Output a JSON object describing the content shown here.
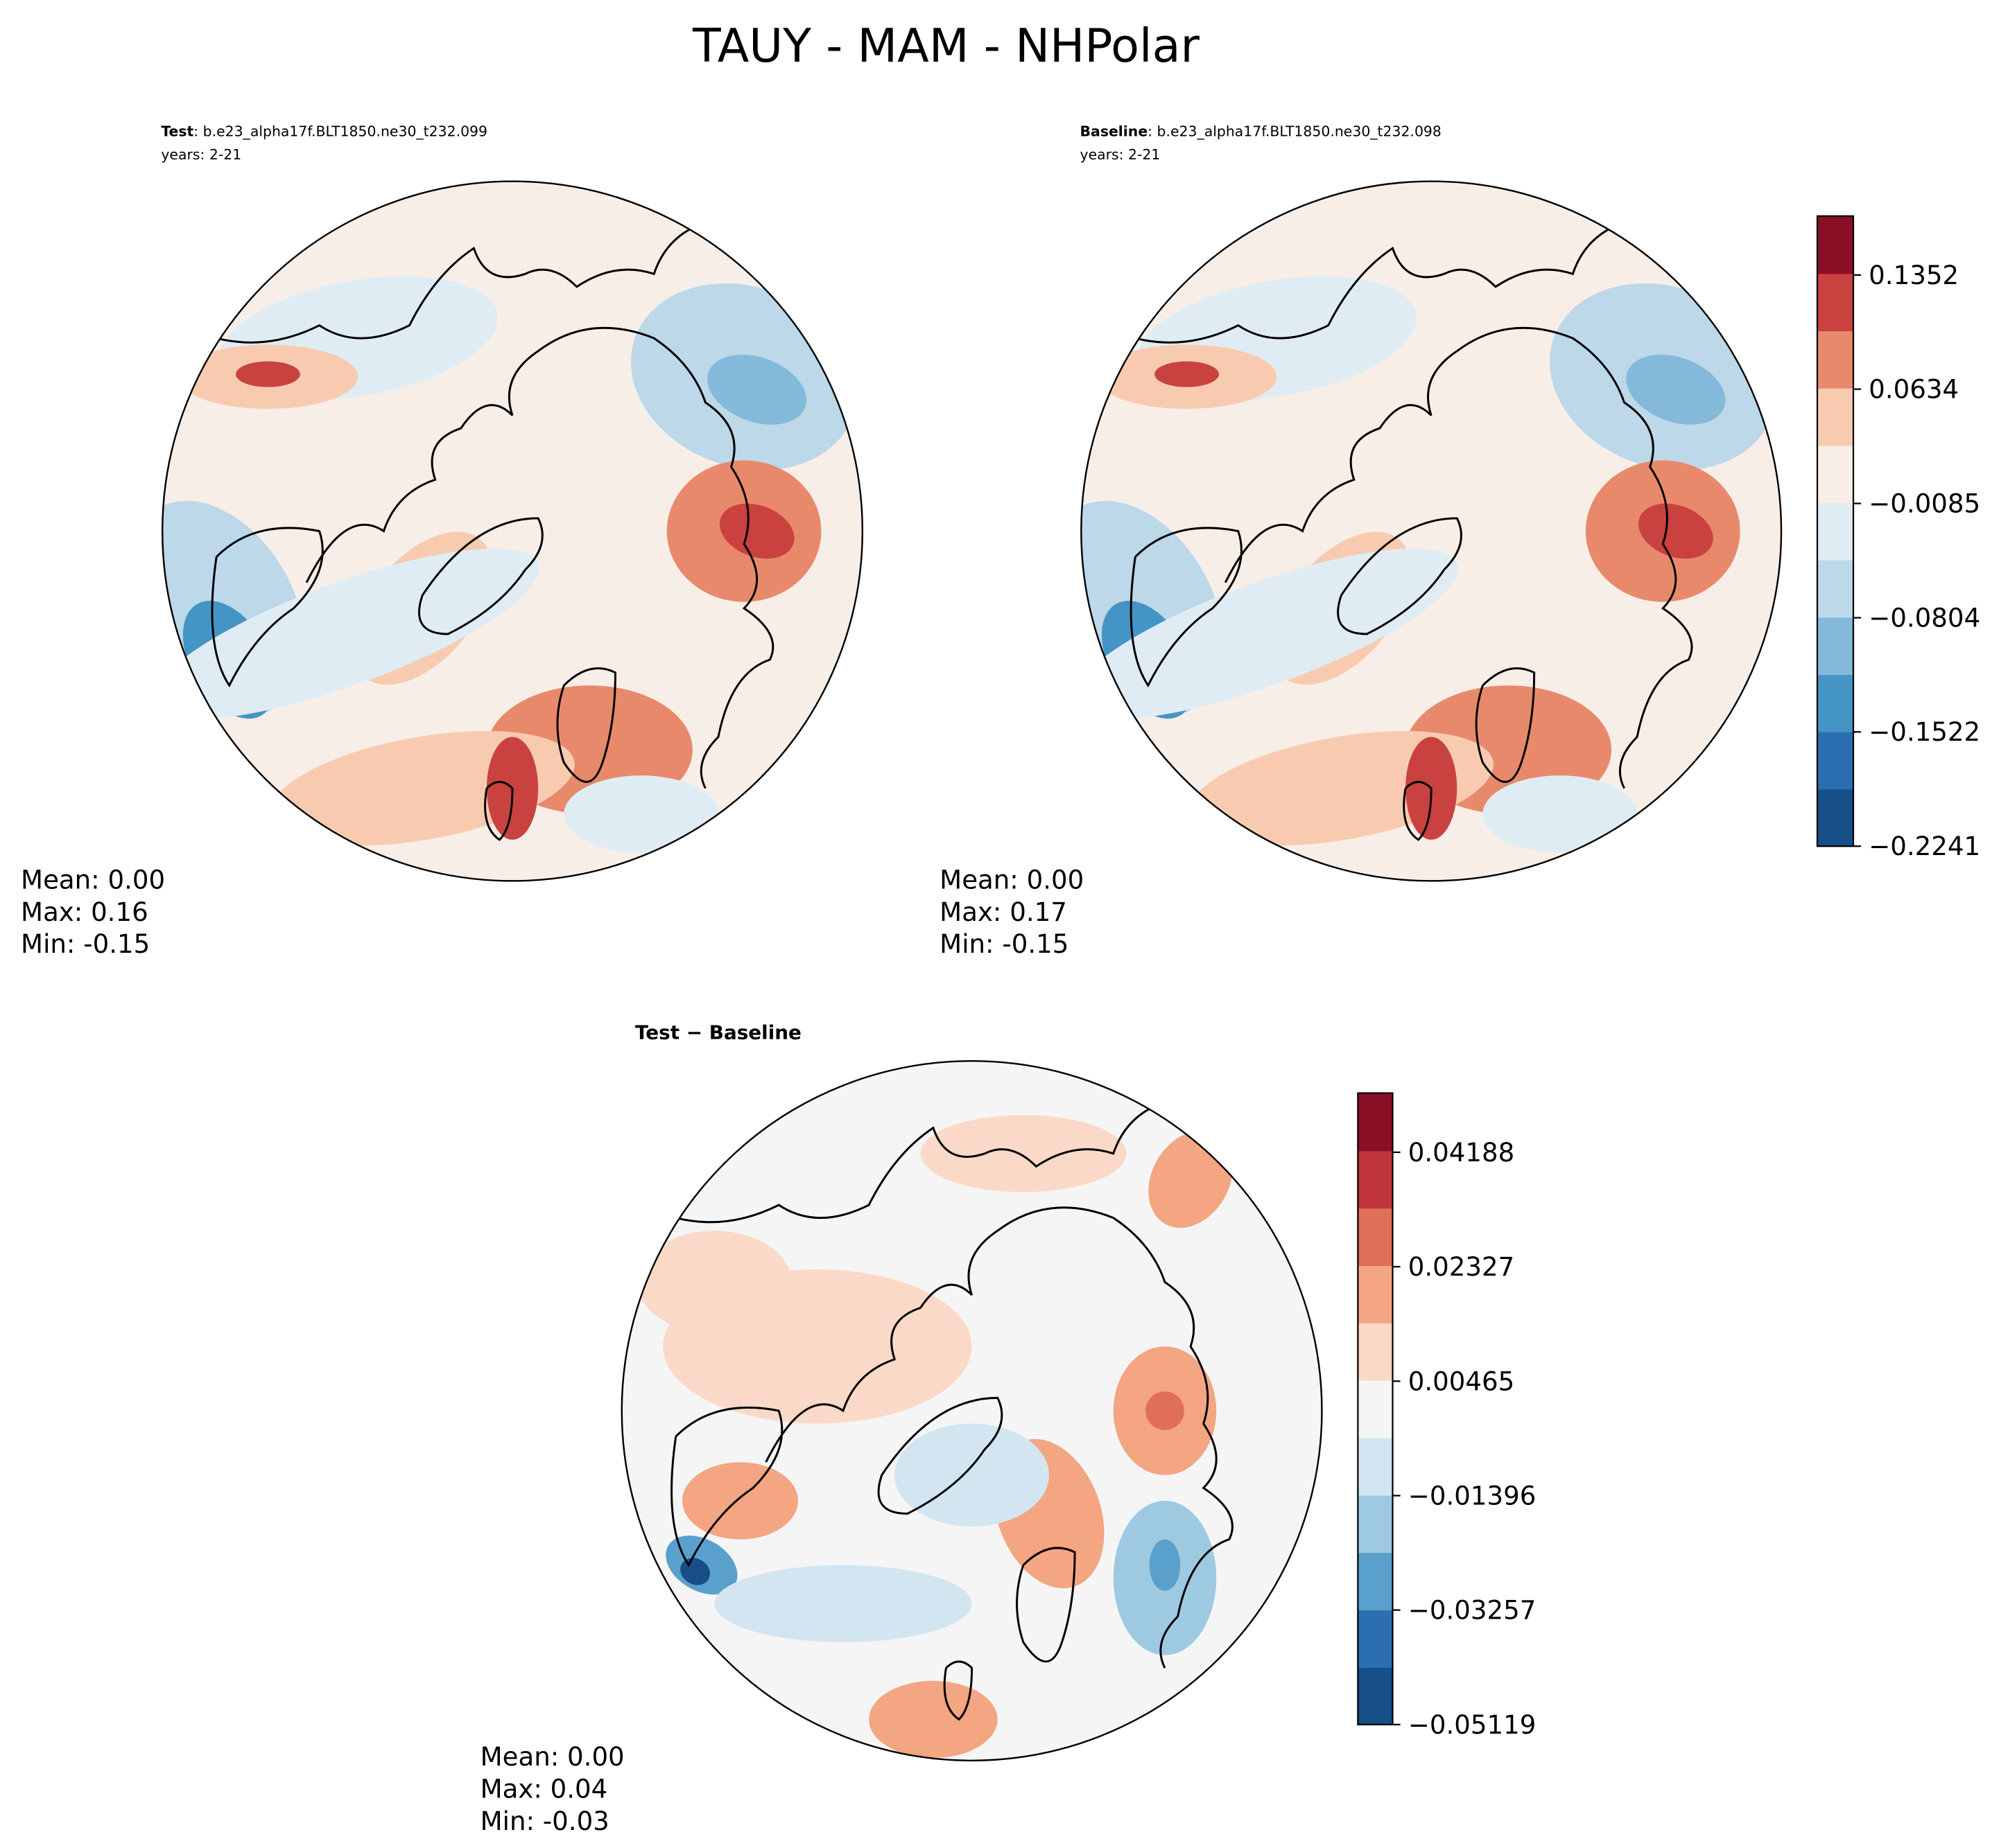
{
  "title": "TAUY - MAM - NHPolar",
  "panels": [
    {
      "label_bold": "Test",
      "label_rest": ": b.e23_alpha17f.BLT1850.ne30_t232.099",
      "years": "years: 2-21",
      "stats": [
        "Mean:  0.00",
        "Max:  0.16",
        "Min: -0.15"
      ]
    },
    {
      "label_bold": "Baseline",
      "label_rest": ": b.e23_alpha17f.BLT1850.ne30_t232.098",
      "years": "years: 2-21",
      "stats": [
        "Mean:  0.00",
        "Max:  0.17",
        "Min: -0.15"
      ]
    },
    {
      "label_bold": "Test − Baseline",
      "stats": [
        "Mean:  0.00",
        "Max:  0.04",
        "Min: -0.03"
      ]
    }
  ],
  "colorbars": [
    {
      "lim": [
        -0.2241,
        0.1723
      ],
      "ticks": [
        {
          "value": -0.2241,
          "label": "−0.2241"
        },
        {
          "value": -0.1522,
          "label": "−0.1522"
        },
        {
          "value": -0.0804,
          "label": "−0.0804"
        },
        {
          "value": -0.0085,
          "label": "−0.0085"
        },
        0.0634,
        0.1352
      ],
      "colors": [
        "#164f88",
        "#2b6fb0",
        "#4594c6",
        "#84b9d9",
        "#bcd8e9",
        "#e0ecf4",
        "#f8eee8",
        "#f8cbb0",
        "#e8896c",
        "#c9423f",
        "#8a0f26"
      ]
    },
    {
      "lim": [
        -0.05119,
        0.0515
      ],
      "ticks": [
        {
          "value": -0.05119,
          "label": "−0.05119"
        },
        {
          "value": -0.03257,
          "label": "−0.03257"
        },
        {
          "value": -0.01396,
          "label": "−0.01396"
        },
        0.00465,
        0.02327,
        0.04188
      ],
      "colors": [
        "#164f88",
        "#2b6fb0",
        "#5aa0cc",
        "#9ecae1",
        "#d3e5f0",
        "#f5f5f5",
        "#fbd9c8",
        "#f4a582",
        "#df6f58",
        "#c0353b",
        "#8a0f26"
      ]
    }
  ]
}
